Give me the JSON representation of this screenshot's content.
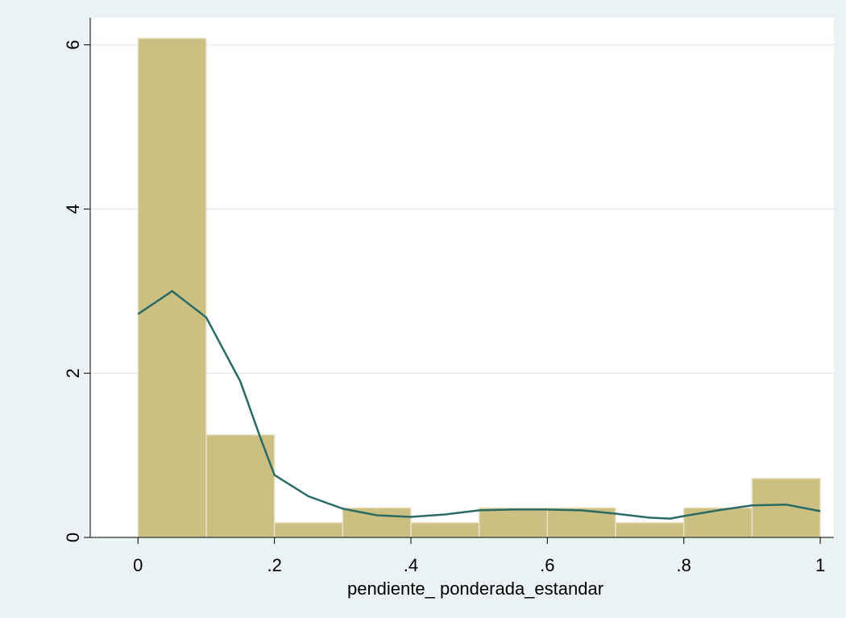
{
  "chart_data": {
    "type": "histogram",
    "xlabel": "pendiente_ ponderada_estandar",
    "bins": [
      0,
      0.1,
      0.2,
      0.3,
      0.4,
      0.5,
      0.6,
      0.7,
      0.8,
      0.9,
      1
    ],
    "values": [
      6.08,
      1.25,
      0.18,
      0.36,
      0.18,
      0.36,
      0.36,
      0.18,
      0.36,
      0.72
    ],
    "color": "#ccbf82",
    "density": {
      "color": "#2a6b66",
      "x": [
        0,
        0.05,
        0.1,
        0.15,
        0.18,
        0.2,
        0.25,
        0.3,
        0.35,
        0.4,
        0.45,
        0.5,
        0.55,
        0.6,
        0.65,
        0.7,
        0.75,
        0.78,
        0.8,
        0.85,
        0.9,
        0.95,
        1
      ],
      "values": [
        2.72,
        3.0,
        2.68,
        1.9,
        1.2,
        0.76,
        0.5,
        0.35,
        0.27,
        0.25,
        0.28,
        0.33,
        0.34,
        0.34,
        0.33,
        0.29,
        0.24,
        0.23,
        0.26,
        0.33,
        0.39,
        0.4,
        0.32
      ]
    },
    "xlim": [
      -0.07,
      1.02
    ],
    "ylim": [
      0,
      6.33
    ],
    "xticks": [
      0,
      {
        "value": 0.2,
        "label": ".2"
      },
      {
        "value": 0.4,
        "label": ".4"
      },
      {
        "value": 0.6,
        "label": ".6"
      },
      {
        "value": 0.8,
        "label": ".8"
      },
      1
    ],
    "yticks": [
      0,
      2,
      4,
      6
    ],
    "grid": true
  }
}
